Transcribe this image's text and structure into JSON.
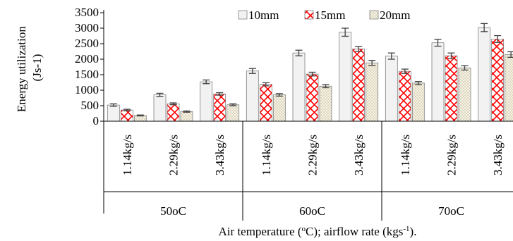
{
  "chart_data": {
    "type": "bar",
    "ylabel_lines": [
      "Energy utilization",
      "(Js-1)"
    ],
    "xlabel": {
      "main": "Air temperature (",
      "sup1": "o",
      "mid": "C); airflow rate (kgs",
      "sup2": "-1",
      "end": ")."
    },
    "ylim": [
      0,
      3500
    ],
    "yticks": [
      0,
      500,
      1000,
      1500,
      2000,
      2500,
      3000,
      3500
    ],
    "groups": [
      {
        "label": "50oC",
        "categories": [
          "1.14kg/s",
          "2.29kg/s",
          "3.43kg/s"
        ]
      },
      {
        "label": "60oC",
        "categories": [
          "1.14kg/s",
          "2.29kg/s",
          "3.43kg/s"
        ]
      },
      {
        "label": "70oC",
        "categories": [
          "1.14kg/s",
          "2.29kg/s",
          "3.43kg/s"
        ]
      }
    ],
    "series": [
      {
        "name": "10mm",
        "values": [
          520,
          850,
          1270,
          1620,
          2200,
          2870,
          2100,
          2530,
          3020
        ],
        "errors": [
          40,
          50,
          60,
          80,
          90,
          130,
          100,
          110,
          130
        ],
        "color": "#f2f2f2"
      },
      {
        "name": "15mm",
        "values": [
          360,
          560,
          880,
          1190,
          1520,
          2330,
          1610,
          2110,
          2650
        ],
        "errors": [
          25,
          30,
          40,
          50,
          60,
          80,
          70,
          90,
          110
        ],
        "color": "#ff0000"
      },
      {
        "name": "20mm",
        "values": [
          185,
          310,
          530,
          850,
          1130,
          1880,
          1230,
          1720,
          2150
        ],
        "errors": [
          15,
          20,
          30,
          40,
          50,
          80,
          50,
          70,
          90
        ],
        "color": "#c4bd97"
      }
    ],
    "legend_position": "top",
    "grid": false
  }
}
